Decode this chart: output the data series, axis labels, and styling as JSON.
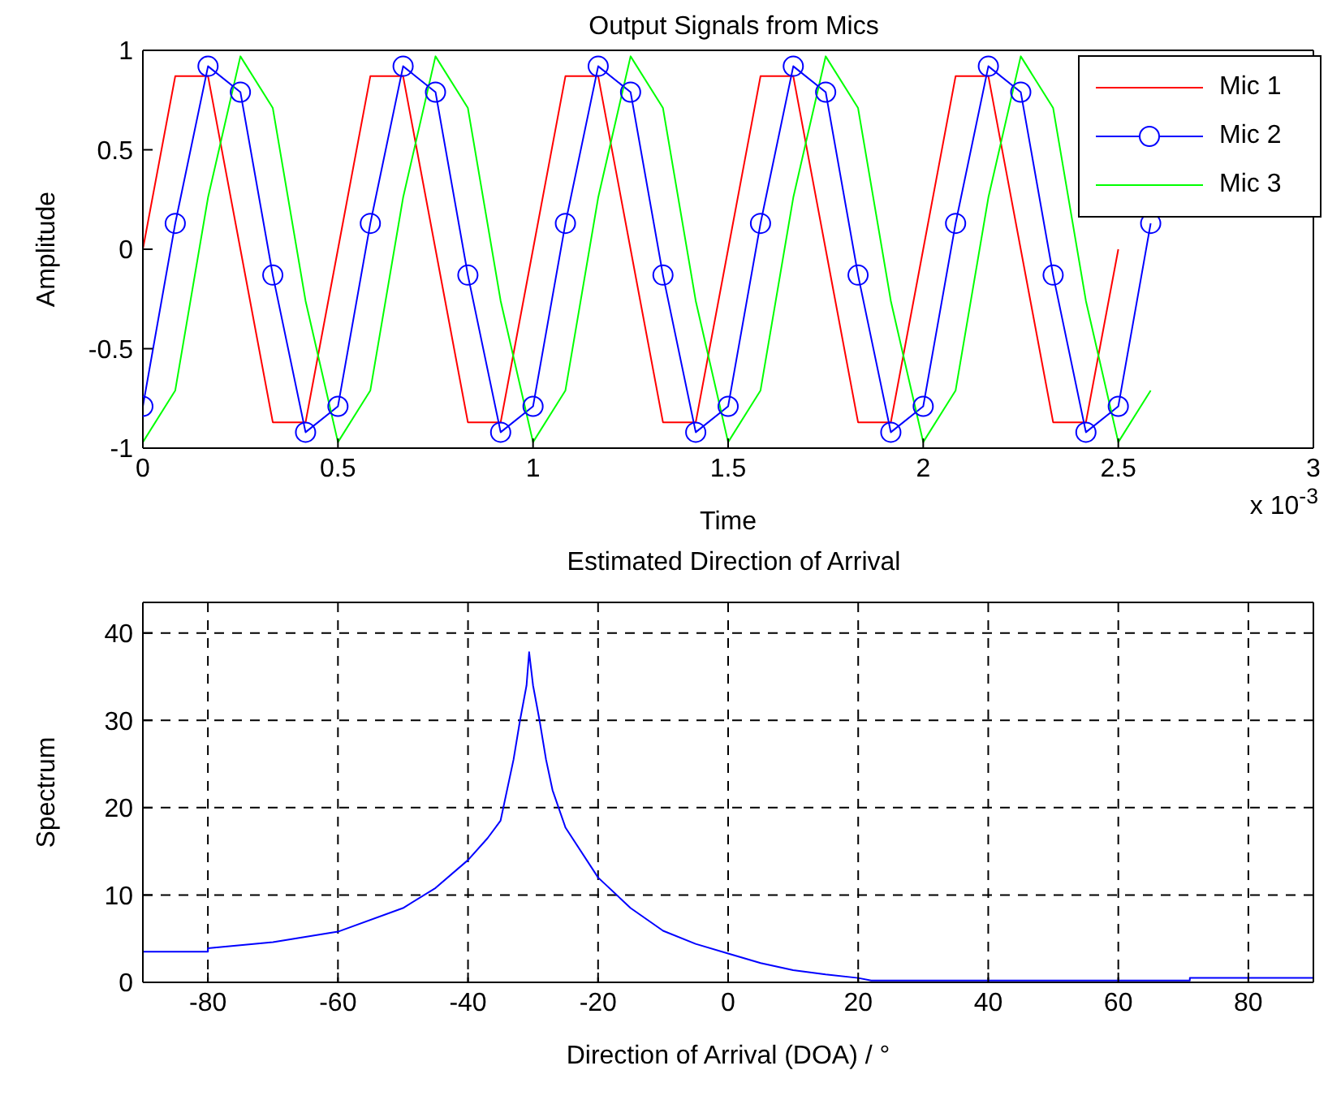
{
  "chart_data": [
    {
      "type": "line",
      "title": "Output Signals from Mics",
      "xlabel": "Time",
      "ylabel": "Amplitude",
      "annotations": [
        "x 10$^{-3}$"
      ],
      "x": [
        0,
        0.083,
        0.167,
        0.25,
        0.333,
        0.417,
        0.5,
        0.583,
        0.667,
        0.75,
        0.833,
        0.917,
        1,
        1.083,
        1.167,
        1.25,
        1.333,
        1.417,
        1.5,
        1.583,
        1.667,
        1.75,
        1.833,
        1.917,
        2,
        2.083,
        2.167,
        2.25,
        2.333,
        2.417,
        2.5,
        2.583
      ],
      "series": [
        {
          "name": "Mic 1",
          "color": "#ff0000",
          "marker": "none",
          "values": [
            0,
            0.87,
            0.87,
            0,
            -0.87,
            -0.87,
            0,
            0.87,
            0.87,
            0,
            -0.87,
            -0.87,
            0,
            0.87,
            0.87,
            0,
            -0.87,
            -0.87,
            0,
            0.87,
            0.87,
            0,
            -0.87,
            -0.87,
            0,
            0.87,
            0.87,
            0,
            -0.87,
            -0.87,
            0,
            null
          ]
        },
        {
          "name": "Mic 2",
          "color": "#0000ff",
          "marker": "circle",
          "values": [
            -0.79,
            0.13,
            0.92,
            0.79,
            -0.13,
            -0.92,
            -0.79,
            0.13,
            0.92,
            0.79,
            -0.13,
            -0.92,
            -0.79,
            0.13,
            0.92,
            0.79,
            -0.13,
            -0.92,
            -0.79,
            0.13,
            0.92,
            0.79,
            -0.13,
            -0.92,
            -0.79,
            0.13,
            0.92,
            0.79,
            -0.13,
            -0.92,
            -0.79,
            0.13
          ]
        },
        {
          "name": "Mic 3",
          "color": "#00ff00",
          "marker": "none",
          "values": [
            -0.97,
            -0.71,
            0.26,
            0.97,
            0.71,
            -0.26,
            -0.97,
            -0.71,
            0.26,
            0.97,
            0.71,
            -0.26,
            -0.97,
            -0.71,
            0.26,
            0.97,
            0.71,
            -0.26,
            -0.97,
            -0.71,
            0.26,
            0.97,
            0.71,
            -0.26,
            -0.97,
            -0.71,
            0.26,
            0.97,
            0.71,
            -0.26,
            -0.97,
            -0.71
          ]
        }
      ],
      "xlim": [
        0,
        3
      ],
      "xticks": [
        0,
        0.5,
        1,
        1.5,
        2,
        2.5,
        3
      ],
      "ylim": [
        -1,
        1
      ],
      "yticks": [
        -1,
        -0.5,
        0,
        0.5,
        1
      ],
      "legend": "top right"
    },
    {
      "type": "line",
      "title": "Estimated Direction of Arrival",
      "xlabel": "Direction of Arrival (DOA) / °",
      "ylabel": "Spectrum",
      "x": [
        -90,
        -80,
        -80,
        -70,
        -60,
        -50,
        -45,
        -40,
        -37,
        -35,
        -33,
        -32,
        -31,
        -30.6,
        -30,
        -29,
        -28,
        -27,
        -25,
        -20,
        -15,
        -10,
        -5,
        0,
        5,
        10,
        15,
        20,
        22,
        71,
        71,
        90
      ],
      "series": [
        {
          "color": "#0000ff",
          "values": [
            3.5,
            3.5,
            3.9,
            4.6,
            5.8,
            8.5,
            10.8,
            14,
            16.5,
            18.5,
            25.5,
            30,
            34,
            37.8,
            34,
            30,
            25.5,
            22,
            17.7,
            12,
            8.5,
            5.9,
            4.4,
            3.3,
            2.2,
            1.4,
            0.9,
            0.5,
            0.2,
            0.2,
            0.5,
            0.5
          ]
        }
      ],
      "xlim": [
        -90,
        90
      ],
      "xticks": [
        -80,
        -60,
        -40,
        -20,
        0,
        20,
        40,
        60,
        80
      ],
      "ylim": [
        0,
        43.5
      ],
      "yticks": [
        0,
        10,
        20,
        30,
        40
      ],
      "grid": true,
      "legend": false
    }
  ]
}
